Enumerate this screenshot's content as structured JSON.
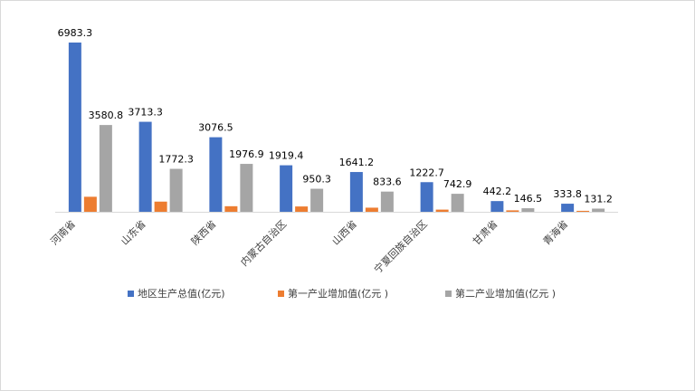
{
  "chart_data": {
    "type": "bar",
    "title": "",
    "xlabel": "",
    "ylabel": "",
    "ylim": [
      0,
      7500
    ],
    "grid": false,
    "legend_position": "bottom",
    "categories": [
      "河南省",
      "山东省",
      "陕西省",
      "内蒙古自治区",
      "山西省",
      "宁夏回族自治区",
      "甘肃省",
      "青海省"
    ],
    "series": [
      {
        "name": "地区生产总值(亿元)",
        "color": "#4472c4",
        "values": [
          6983.3,
          3713.3,
          3076.5,
          1919.4,
          1641.2,
          1222.7,
          442.2,
          333.8
        ],
        "labels": [
          "6983.3",
          "3713.3",
          "3076.5",
          "1919.4",
          "1641.2",
          "1222.7",
          "442.2",
          "333.8"
        ],
        "show_labels": true
      },
      {
        "name": "第一产业增加值(亿元 )",
        "color": "#ed7d31",
        "values": [
          620,
          420,
          230,
          220,
          170,
          90,
          60,
          40
        ],
        "labels": [],
        "show_labels": false
      },
      {
        "name": "第二产业增加值(亿元 )",
        "color": "#a5a5a5",
        "values": [
          3580.8,
          1772.3,
          1976.9,
          950.3,
          833.6,
          742.9,
          146.5,
          131.2
        ],
        "labels": [
          "3580.8",
          "1772.3",
          "1976.9",
          "950.3",
          "833.6",
          "742.9",
          "146.5",
          "131.2"
        ],
        "show_labels": true
      }
    ]
  }
}
